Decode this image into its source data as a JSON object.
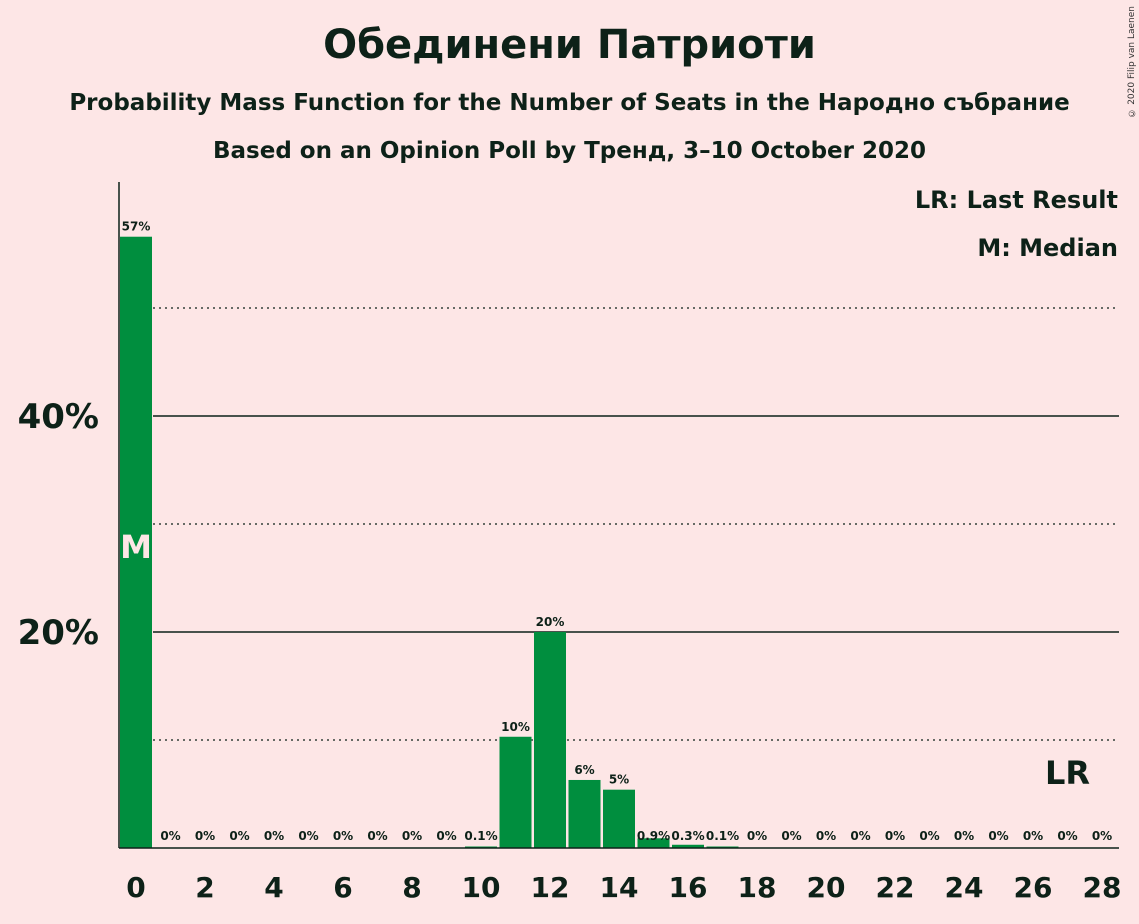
{
  "title": "Обединени Патриоти",
  "subtitle_1": "Probability Mass Function for the Number of Seats in the Народно събрание",
  "subtitle_2": "Based on an Opinion Poll by Тренд, 3–10 October 2020",
  "copyright": "© 2020 Filip van Laenen",
  "legend": {
    "last_result": "LR: Last Result",
    "median": "M: Median"
  },
  "colors": {
    "background": "#FDE6E6",
    "bar": "#008E3E",
    "text": "#0D2118"
  },
  "chart_data": {
    "type": "bar",
    "title": "Обединени Патриоти",
    "xlabel": "",
    "ylabel": "",
    "ylim": [
      0,
      60
    ],
    "y_ticks": [
      {
        "value": 20,
        "label": "20%"
      },
      {
        "value": 40,
        "label": "40%"
      }
    ],
    "y_dotted_lines": [
      10,
      30,
      50
    ],
    "x_tick_labels": [
      "0",
      "2",
      "4",
      "6",
      "8",
      "10",
      "12",
      "14",
      "16",
      "18",
      "20",
      "22",
      "24",
      "26",
      "28"
    ],
    "categories": [
      0,
      1,
      2,
      3,
      4,
      5,
      6,
      7,
      8,
      9,
      10,
      11,
      12,
      13,
      14,
      15,
      16,
      17,
      18,
      19,
      20,
      21,
      22,
      23,
      24,
      25,
      26,
      27,
      28
    ],
    "values": [
      56.6,
      0,
      0,
      0,
      0,
      0,
      0,
      0,
      0,
      0,
      0.1,
      10.3,
      20,
      6.3,
      5.4,
      0.9,
      0.3,
      0.1,
      0,
      0,
      0,
      0,
      0,
      0,
      0,
      0,
      0,
      0,
      0
    ],
    "labels": [
      "57%",
      "0%",
      "0%",
      "0%",
      "0%",
      "0%",
      "0%",
      "0%",
      "0%",
      "0%",
      "0.1%",
      "10%",
      "20%",
      "6%",
      "5%",
      "0.9%",
      "0.3%",
      "0.1%",
      "0%",
      "0%",
      "0%",
      "0%",
      "0%",
      "0%",
      "0%",
      "0%",
      "0%",
      "0%",
      "0%"
    ],
    "median_seat": 0,
    "median_label": "M",
    "last_result_seat": 27,
    "last_result_label": "LR"
  }
}
